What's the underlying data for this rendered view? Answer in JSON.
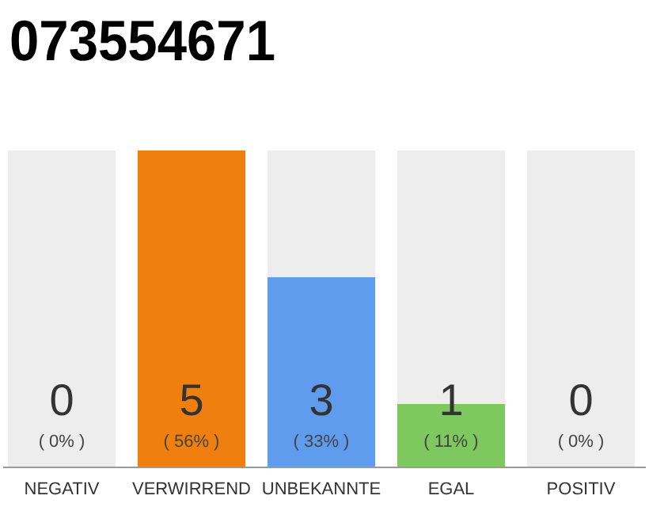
{
  "chart_data": {
    "type": "bar",
    "title": "073554671",
    "categories": [
      "NEGATIV",
      "VERWIRREND",
      "UNBEKANNTE",
      "EGAL",
      "POSITIV"
    ],
    "values": [
      0,
      5,
      3,
      1,
      0
    ],
    "colors": [
      null,
      "#ef7f0e",
      "#5f9cee",
      "#7ec95f",
      null
    ],
    "data_labels": true,
    "bands": [
      {
        "axis": "x",
        "from": "NEGATIV",
        "to": "NEGATIV",
        "color": "#ededed"
      },
      {
        "axis": "x",
        "from": "UNBEKANNTE",
        "to": "UNBEKANNTE",
        "color": "#ededed"
      },
      {
        "axis": "x",
        "from": "EGAL",
        "to": "EGAL",
        "color": "#ededed"
      },
      {
        "axis": "x",
        "from": "POSITIV",
        "to": "POSITIV",
        "color": "#ededed"
      }
    ],
    "annotations": [
      "( 0% )",
      "( 56% )",
      "( 33% )",
      "( 11% )",
      "( 0% )"
    ]
  }
}
